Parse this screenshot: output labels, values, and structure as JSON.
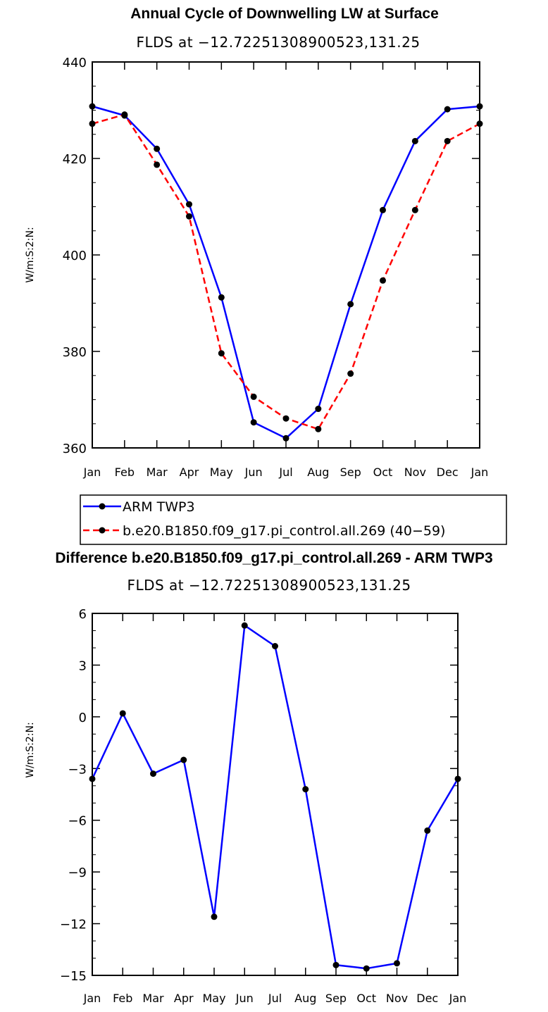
{
  "chart_data": [
    {
      "type": "line",
      "title": "Annual Cycle of Downwelling LW at Surface",
      "subtitle": "FLDS at −12.72251308900523,131.25",
      "ylabel": "W/m:S:2:N:",
      "xlabel": "",
      "categories": [
        "Jan",
        "Feb",
        "Mar",
        "Apr",
        "May",
        "Jun",
        "Jul",
        "Aug",
        "Sep",
        "Oct",
        "Nov",
        "Dec",
        "Jan"
      ],
      "ylim": [
        360,
        440
      ],
      "yticks": [
        360,
        380,
        400,
        420,
        440
      ],
      "grid": false,
      "legend": "below",
      "series": [
        {
          "name": "ARM TWP3",
          "color": "#0000ff",
          "dash": "solid",
          "values": [
            430.8,
            428.9,
            422.0,
            410.5,
            391.2,
            365.3,
            362.0,
            368.1,
            389.8,
            409.3,
            423.6,
            430.2,
            430.8
          ]
        },
        {
          "name": "b.e20.B1850.f09_g17.pi_control.all.269 (40−59)",
          "color": "#ff0000",
          "dash": "dashed",
          "values": [
            427.2,
            429.1,
            418.7,
            408.0,
            379.6,
            370.6,
            366.1,
            363.9,
            375.4,
            394.7,
            409.3,
            423.6,
            427.2
          ]
        }
      ]
    },
    {
      "type": "line",
      "title": "Difference b.e20.B1850.f09_g17.pi_control.all.269 - ARM TWP3",
      "subtitle": "FLDS at −12.72251308900523,131.25",
      "ylabel": "W/m:S:2:N:",
      "xlabel": "",
      "categories": [
        "Jan",
        "Feb",
        "Mar",
        "Apr",
        "May",
        "Jun",
        "Jul",
        "Aug",
        "Sep",
        "Oct",
        "Nov",
        "Dec",
        "Jan"
      ],
      "ylim": [
        -15,
        6
      ],
      "yticks": [
        -15,
        -12,
        -9,
        -6,
        -3,
        0,
        3,
        6
      ],
      "ytick_labels": [
        "−15",
        "−12",
        "−9",
        "−6",
        "−3",
        "0",
        "3",
        "6"
      ],
      "grid": false,
      "series": [
        {
          "color": "#0000ff",
          "dash": "solid",
          "values": [
            -3.6,
            0.2,
            -3.3,
            -2.5,
            -11.6,
            5.3,
            4.1,
            -4.2,
            -14.4,
            -14.6,
            -14.3,
            -6.6,
            -3.6
          ]
        }
      ]
    }
  ]
}
